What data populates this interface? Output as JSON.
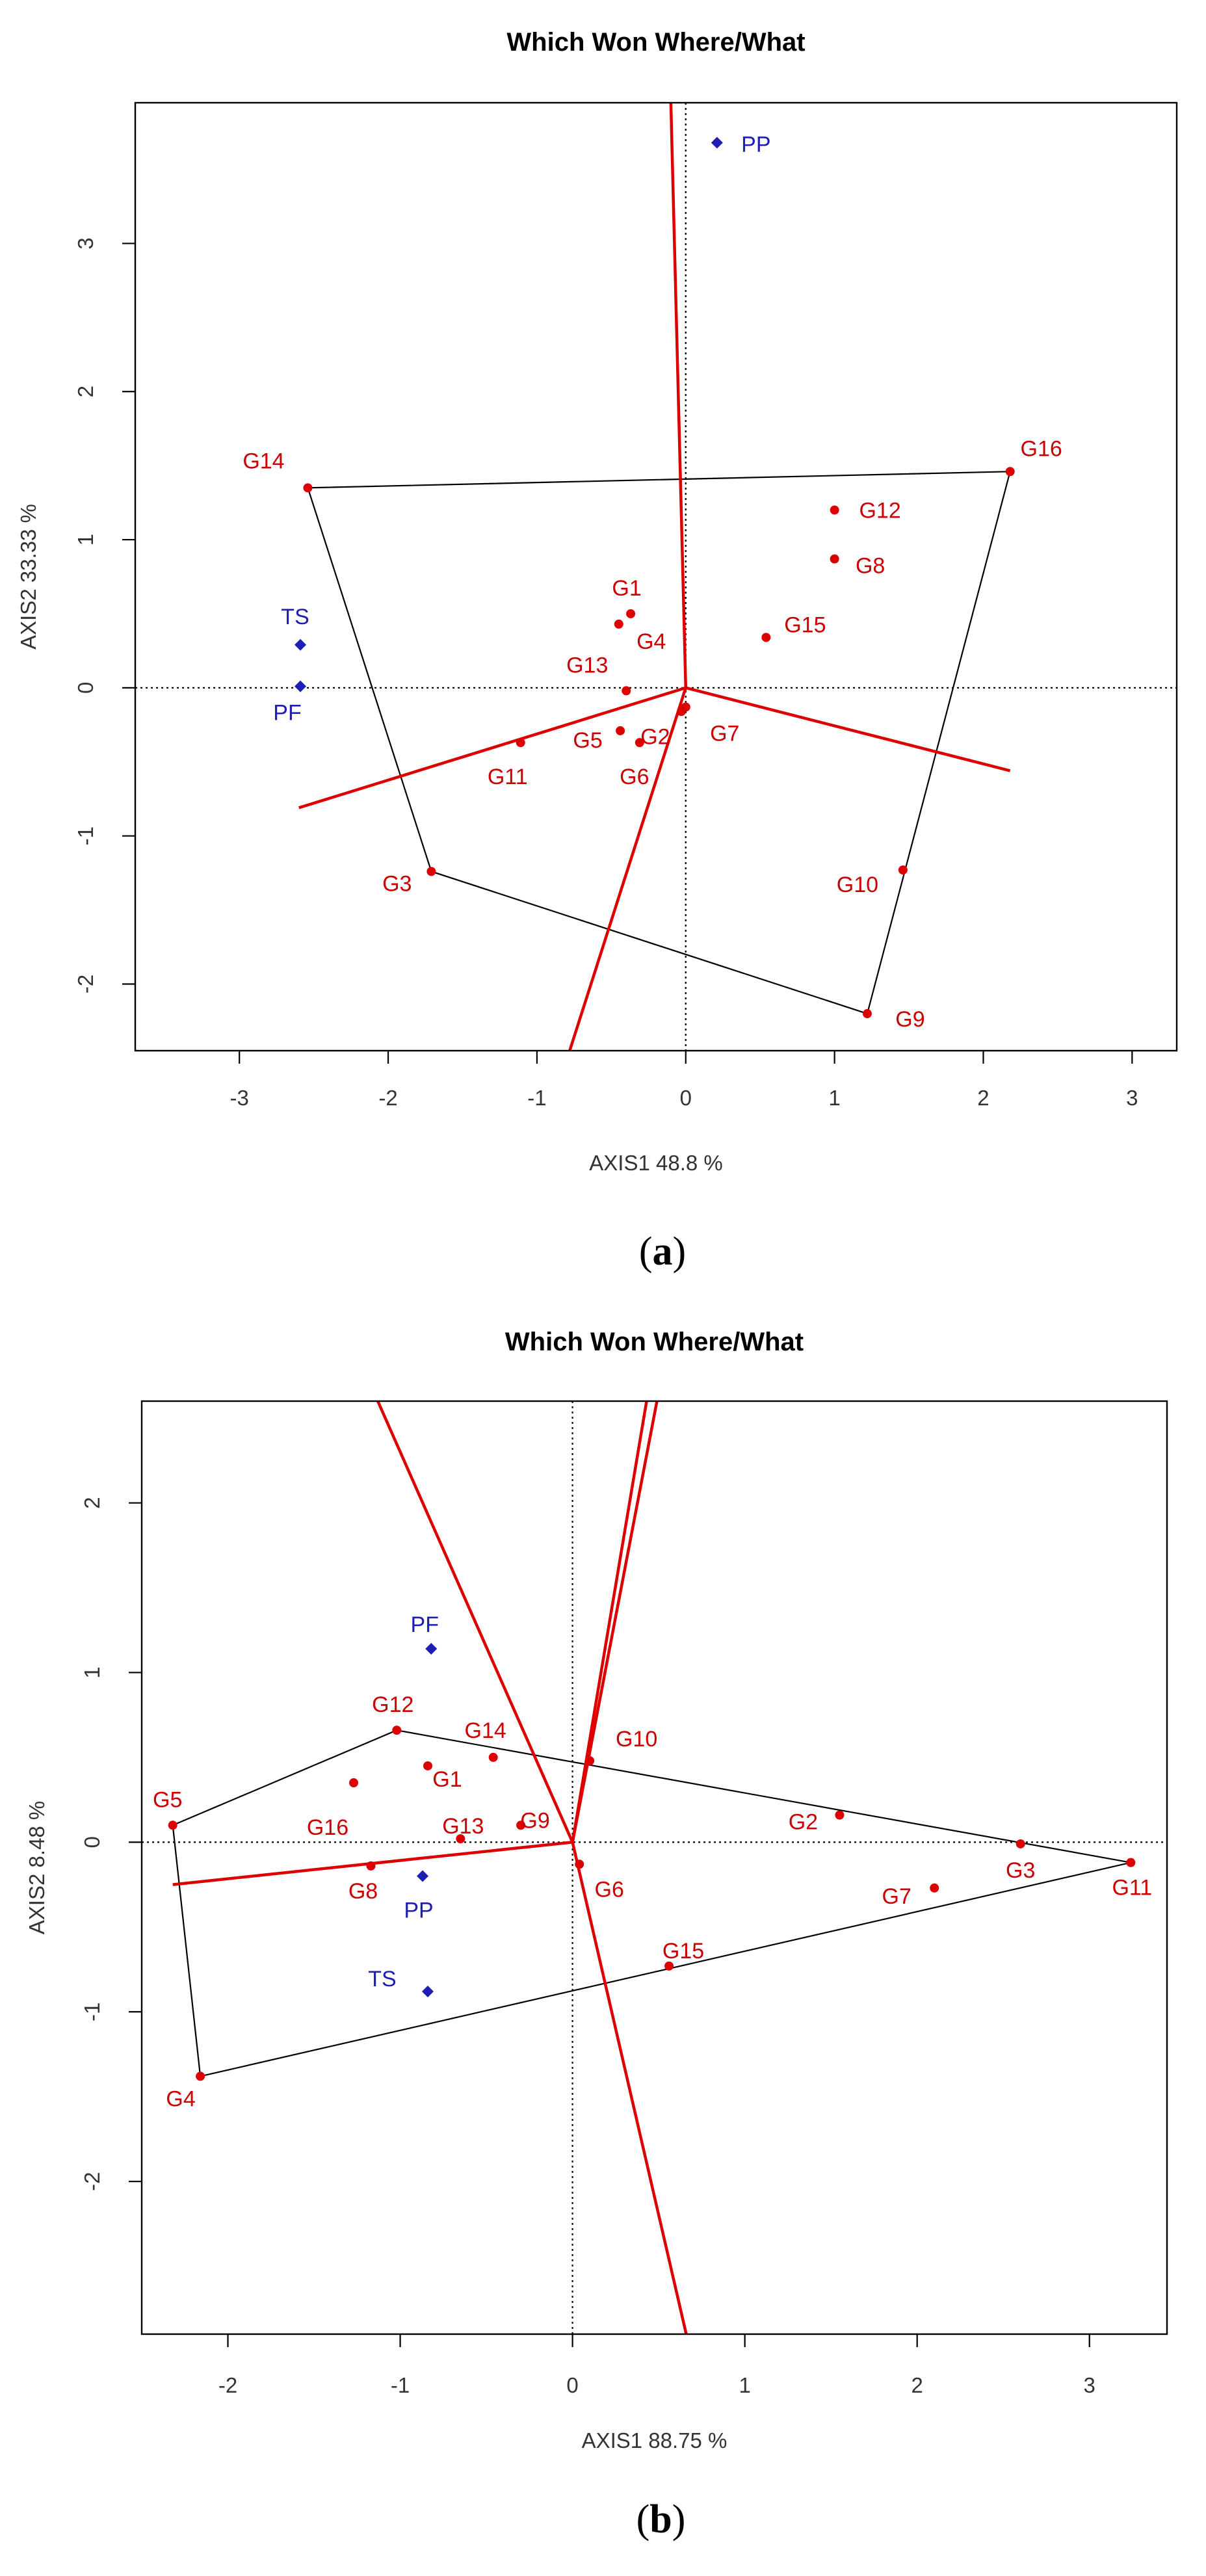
{
  "colors": {
    "genotype": "#dd0000",
    "environment": "#1e1eb4",
    "hull": "#000000",
    "sector": "#dd0000"
  },
  "chart_data": [
    {
      "type": "scatter",
      "panel_label": "a",
      "title": "Which Won Where/What",
      "xlabel": "AXIS1 48.8 %",
      "ylabel": "AXIS2 33.33 %",
      "xlim": [
        -3.7,
        3.3
      ],
      "ylim": [
        -2.45,
        3.95
      ],
      "xticks": [
        "-3",
        "-2",
        "-1",
        "0",
        "1",
        "2",
        "3"
      ],
      "yticks": [
        "-2",
        "-1",
        "0",
        "1",
        "2",
        "3"
      ],
      "genotypes": [
        {
          "label": "G1",
          "x": -0.37,
          "y": 0.5
        },
        {
          "label": "G2",
          "x": -0.03,
          "y": -0.16
        },
        {
          "label": "G3",
          "x": -1.71,
          "y": -1.24
        },
        {
          "label": "G4",
          "x": -0.45,
          "y": 0.43
        },
        {
          "label": "G5",
          "x": -0.44,
          "y": -0.29
        },
        {
          "label": "G6",
          "x": -0.31,
          "y": -0.37
        },
        {
          "label": "G7",
          "x": 0.0,
          "y": -0.13
        },
        {
          "label": "G8",
          "x": 1.0,
          "y": 0.87
        },
        {
          "label": "G9",
          "x": 1.22,
          "y": -2.2
        },
        {
          "label": "G10",
          "x": 1.46,
          "y": -1.23
        },
        {
          "label": "G11",
          "x": -1.11,
          "y": -0.37
        },
        {
          "label": "G12",
          "x": 1.0,
          "y": 1.2
        },
        {
          "label": "G13",
          "x": -0.4,
          "y": -0.02
        },
        {
          "label": "G14",
          "x": -2.54,
          "y": 1.35
        },
        {
          "label": "G15",
          "x": 0.54,
          "y": 0.34
        },
        {
          "label": "G16",
          "x": 2.18,
          "y": 1.46
        }
      ],
      "environments": [
        {
          "label": "PP",
          "x": 0.21,
          "y": 3.68
        },
        {
          "label": "TS",
          "x": -2.59,
          "y": 0.29
        },
        {
          "label": "PF",
          "x": -2.59,
          "y": 0.01
        }
      ],
      "hull": [
        "G14",
        "G16",
        "G9",
        "G3"
      ],
      "rays": [
        [
          -0.1,
          3.95
        ],
        [
          2.18,
          -0.56
        ],
        [
          -0.78,
          -2.45
        ],
        [
          -2.6,
          -0.81
        ]
      ]
    },
    {
      "type": "scatter",
      "panel_label": "b",
      "title": "Which Won Where/What",
      "xlabel": "AXIS1 88.75 %",
      "ylabel": "AXIS2 8.48 %",
      "xlim": [
        -2.5,
        3.45
      ],
      "ylim": [
        -2.9,
        2.6
      ],
      "xticks": [
        "-2",
        "-1",
        "0",
        "1",
        "2",
        "3"
      ],
      "yticks": [
        "-2",
        "-1",
        "0",
        "1",
        "2"
      ],
      "genotypes": [
        {
          "label": "G1",
          "x": -0.84,
          "y": 0.45
        },
        {
          "label": "G2",
          "x": 1.55,
          "y": 0.16
        },
        {
          "label": "G3",
          "x": 2.6,
          "y": -0.01
        },
        {
          "label": "G4",
          "x": -2.16,
          "y": -1.38
        },
        {
          "label": "G5",
          "x": -2.32,
          "y": 0.1
        },
        {
          "label": "G6",
          "x": 0.04,
          "y": -0.13
        },
        {
          "label": "G7",
          "x": 2.1,
          "y": -0.27
        },
        {
          "label": "G8",
          "x": -1.17,
          "y": -0.14
        },
        {
          "label": "G9",
          "x": -0.3,
          "y": 0.1
        },
        {
          "label": "G10",
          "x": 0.1,
          "y": 0.48
        },
        {
          "label": "G11",
          "x": 3.24,
          "y": -0.12
        },
        {
          "label": "G12",
          "x": -1.02,
          "y": 0.66
        },
        {
          "label": "G13",
          "x": -0.65,
          "y": 0.02
        },
        {
          "label": "G14",
          "x": -0.46,
          "y": 0.5
        },
        {
          "label": "G15",
          "x": 0.56,
          "y": -0.73
        },
        {
          "label": "G16",
          "x": -1.27,
          "y": 0.35
        }
      ],
      "environments": [
        {
          "label": "PF",
          "x": -0.82,
          "y": 1.14
        },
        {
          "label": "PP",
          "x": -0.87,
          "y": -0.2
        },
        {
          "label": "TS",
          "x": -0.84,
          "y": -0.88
        }
      ],
      "hull": [
        "G12",
        "G11",
        "G4",
        "G5"
      ],
      "rays": [
        [
          -1.13,
          2.6
        ],
        [
          0.43,
          2.6
        ],
        [
          0.49,
          2.6
        ],
        [
          0.66,
          -2.9
        ],
        [
          -2.32,
          -0.25
        ]
      ]
    }
  ]
}
